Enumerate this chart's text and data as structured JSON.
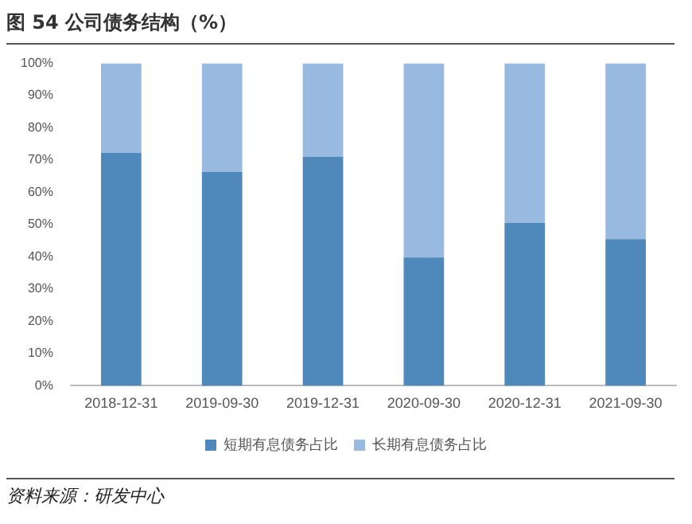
{
  "chart_data": {
    "type": "bar",
    "title": "图 54 公司债务结构（%）",
    "stacked": true,
    "categories": [
      "2018-12-31",
      "2019-09-30",
      "2019-12-31",
      "2020-09-30",
      "2020-12-31",
      "2021-09-30"
    ],
    "series": [
      {
        "name": "短期有息债务占比",
        "color": "#4f88bb",
        "values": [
          72.3,
          66.3,
          71,
          39.8,
          50.5,
          45.5
        ]
      },
      {
        "name": "长期有息债务占比",
        "color": "#98b9e0",
        "values": [
          27.7,
          33.7,
          29,
          60.2,
          49.5,
          54.5
        ]
      }
    ],
    "ylim": [
      0,
      100
    ],
    "yticks": [
      {
        "value": 0,
        "label": "0%"
      },
      {
        "value": 10,
        "label": "10%"
      },
      {
        "value": 20,
        "label": "20%"
      },
      {
        "value": 30,
        "label": "30%"
      },
      {
        "value": 40,
        "label": "40%"
      },
      {
        "value": 50,
        "label": "50%"
      },
      {
        "value": 60,
        "label": "60%"
      },
      {
        "value": 70,
        "label": "70%"
      },
      {
        "value": 80,
        "label": "80%"
      },
      {
        "value": 90,
        "label": "90%"
      },
      {
        "value": 100,
        "label": "100%"
      }
    ],
    "grid": false,
    "legend": "bottom",
    "annotations": [
      "资料来源：研发中心"
    ]
  }
}
